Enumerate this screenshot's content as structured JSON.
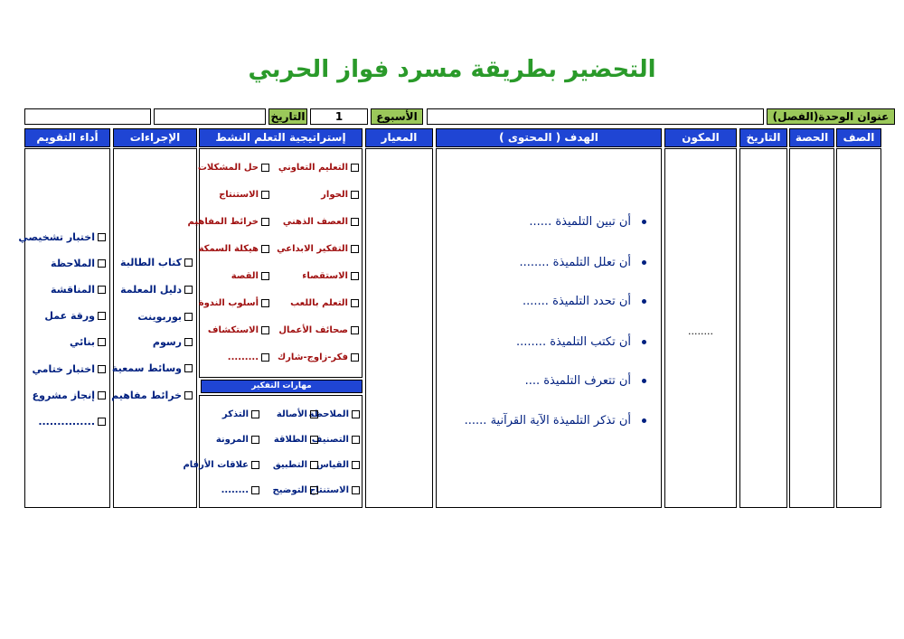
{
  "header": {
    "title": "التحضير بطريقة مسرد فواز الحربي"
  },
  "info": {
    "unit_label": "عنوان الوحدة(الفصل)",
    "week_label": "الأسبوع",
    "week": 1,
    "date_label": "التاريخ"
  },
  "table": {
    "columns": [
      "الصف",
      "الحصة",
      "التاريخ",
      "المكون",
      "الهدف ( المحتوى )",
      "المعيار",
      "إستراتيجية التعلم النشط",
      "الإجراءات",
      "أداء التقويم"
    ],
    "component": "........",
    "objectives": [
      "أن تبين التلميذة ......",
      "أن تعلل التلميذة ........",
      "أن تحدد التلميذة .......",
      "أن تكتب التلميذة ........",
      "أن تتعرف التلميذة ....",
      "أن تذكر التلميذة الآية القرآنية ......"
    ],
    "strategies": {
      "right": [
        "التعليم التعاوني",
        "الحوار",
        "العصف الذهني",
        "التفكير الابداعي",
        "الاستقصاء",
        "التعلم باللعب",
        "صحائف الأعمال",
        "فكر-زاوج-شارك"
      ],
      "left": [
        "حل المشكلات",
        "الاستنتاج",
        "خرائط المفاهيم",
        "هيكلة السمكة",
        "القصة",
        "أسلوب الندوة",
        "الاستكشاف",
        "........."
      ]
    },
    "thinking_skills": {
      "title": "مهارات التفكير",
      "rows": [
        [
          "الملاحظة",
          "الأصالة",
          "التذكر"
        ],
        [
          "التصنيف",
          "الطلاقة",
          "المرونة"
        ],
        [
          "القياس",
          "التطبيق",
          "علاقات الأرقام"
        ],
        [
          "الاستنتاج",
          "التوضيح",
          "........"
        ]
      ]
    },
    "procedures": [
      "كتاب الطالبة",
      "دليل المعلمة",
      "بوربوينت",
      "رسوم",
      "وسائط سمعية",
      "خرائط مفاهيم"
    ],
    "evaluation": [
      "اختبار تشخيصي",
      "الملاحظة",
      "المناقشة",
      "ورقة عمل",
      "بنائي",
      "اختبار ختامي",
      "إنجاز مشروع",
      "..............."
    ]
  }
}
